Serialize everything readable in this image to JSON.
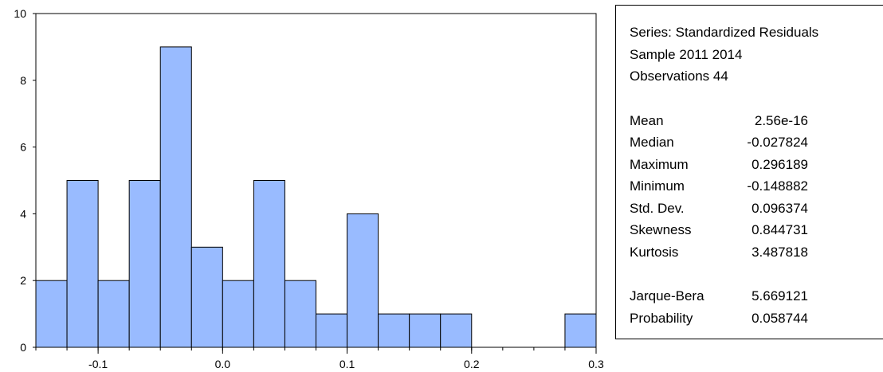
{
  "chart_data": {
    "type": "bar",
    "series_label": "Series: Standardized Residuals",
    "bin_edges": [
      -0.15,
      -0.125,
      -0.1,
      -0.075,
      -0.05,
      -0.025,
      0.0,
      0.025,
      0.05,
      0.075,
      0.1,
      0.125,
      0.15,
      0.175,
      0.2,
      0.225,
      0.25,
      0.275,
      0.3
    ],
    "values": [
      2,
      5,
      2,
      5,
      9,
      3,
      2,
      5,
      2,
      1,
      4,
      1,
      1,
      1,
      0,
      0,
      0,
      1
    ],
    "xlim": [
      -0.15,
      0.3
    ],
    "ylim": [
      0,
      10
    ],
    "x_ticks": [
      -0.1,
      0.0,
      0.1,
      0.2,
      0.3
    ],
    "x_tick_labels": [
      "-0.1",
      "0.0",
      "0.1",
      "0.2",
      "0.3"
    ],
    "y_ticks": [
      0,
      2,
      4,
      6,
      8,
      10
    ],
    "y_tick_labels": [
      "0",
      "2",
      "4",
      "6",
      "8",
      "10"
    ],
    "bar_color": "#99bbff",
    "grid": false
  },
  "stats": {
    "series": "Series: Standardized Residuals",
    "sample": "Sample 2011 2014",
    "observations": "Observations 44",
    "rows": [
      {
        "label": "Mean",
        "value": "2.56e-16"
      },
      {
        "label": "Median",
        "value": "-0.027824"
      },
      {
        "label": "Maximum",
        "value": "0.296189"
      },
      {
        "label": "Minimum",
        "value": "-0.148882"
      },
      {
        "label": "Std. Dev.",
        "value": "0.096374"
      },
      {
        "label": "Skewness",
        "value": "0.844731"
      },
      {
        "label": "Kurtosis",
        "value": "3.487818"
      }
    ],
    "tests": [
      {
        "label": "Jarque-Bera",
        "value": "5.669121"
      },
      {
        "label": "Probability",
        "value": "0.058744"
      }
    ]
  }
}
